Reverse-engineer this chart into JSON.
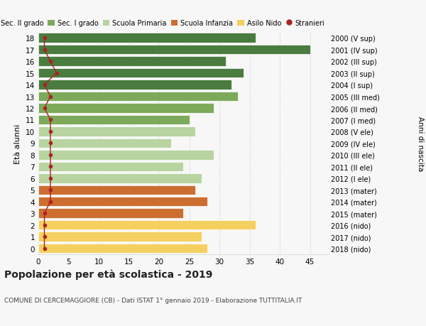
{
  "ages": [
    18,
    17,
    16,
    15,
    14,
    13,
    12,
    11,
    10,
    9,
    8,
    7,
    6,
    5,
    4,
    3,
    2,
    1,
    0
  ],
  "right_labels": [
    "2000 (V sup)",
    "2001 (IV sup)",
    "2002 (III sup)",
    "2003 (II sup)",
    "2004 (I sup)",
    "2005 (III med)",
    "2006 (II med)",
    "2007 (I med)",
    "2008 (V ele)",
    "2009 (IV ele)",
    "2010 (III ele)",
    "2011 (II ele)",
    "2012 (I ele)",
    "2013 (mater)",
    "2014 (mater)",
    "2015 (mater)",
    "2016 (nido)",
    "2017 (nido)",
    "2018 (nido)"
  ],
  "bar_values": [
    36,
    45,
    31,
    34,
    32,
    33,
    29,
    25,
    26,
    22,
    29,
    24,
    27,
    26,
    28,
    24,
    36,
    27,
    28
  ],
  "stranieri_values": [
    1,
    1,
    2,
    3,
    1,
    2,
    1,
    2,
    2,
    2,
    2,
    2,
    2,
    2,
    2,
    1,
    1,
    1,
    1
  ],
  "bar_colors": [
    "#4a7c3f",
    "#4a7c3f",
    "#4a7c3f",
    "#4a7c3f",
    "#4a7c3f",
    "#7daa5a",
    "#7daa5a",
    "#7daa5a",
    "#b8d4a0",
    "#b8d4a0",
    "#b8d4a0",
    "#b8d4a0",
    "#b8d4a0",
    "#cc6e30",
    "#cc6e30",
    "#cc6e30",
    "#f5d060",
    "#f5d060",
    "#f5d060"
  ],
  "stranieri_color": "#aa2222",
  "background_color": "#f7f7f7",
  "grid_color": "#d8d8d8",
  "title": "Popolazione per età scolastica - 2019",
  "subtitle": "COMUNE DI CERCEMAGGIORE (CB) - Dati ISTAT 1° gennaio 2019 - Elaborazione TUTTITALIA.IT",
  "ylabel_left": "Età alunni",
  "ylabel_right": "Anni di nascita",
  "xlim": [
    0,
    48
  ],
  "xticks": [
    0,
    5,
    10,
    15,
    20,
    25,
    30,
    35,
    40,
    45
  ],
  "legend_labels": [
    "Sec. II grado",
    "Sec. I grado",
    "Scuola Primaria",
    "Scuola Infanzia",
    "Asilo Nido",
    "Stranieri"
  ],
  "legend_colors": [
    "#4a7c3f",
    "#7daa5a",
    "#b8d4a0",
    "#cc6e30",
    "#f5d060",
    "#aa2222"
  ]
}
